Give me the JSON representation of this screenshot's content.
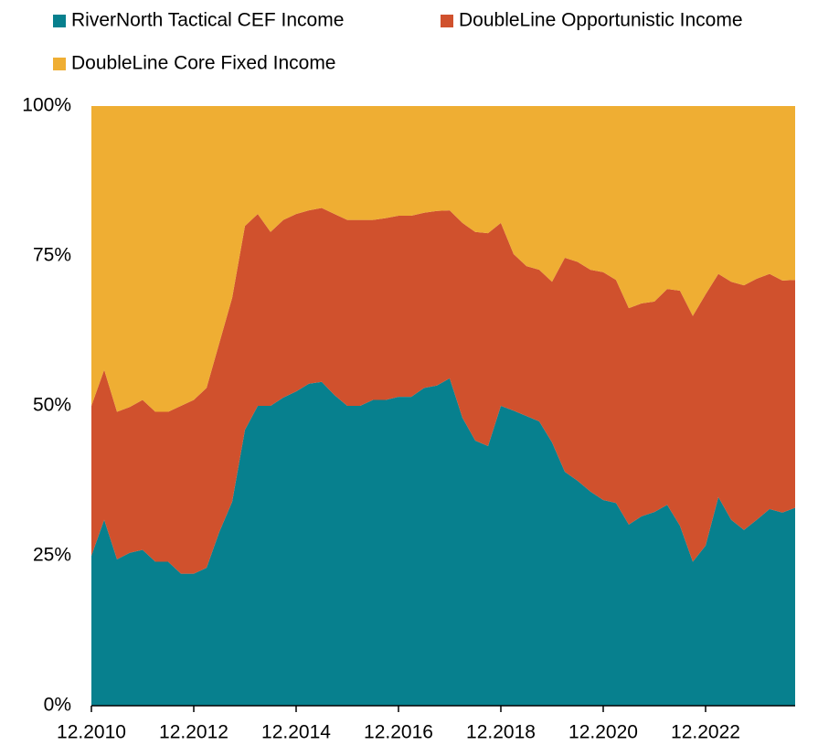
{
  "chart_data": {
    "type": "stacked_area",
    "categories": [
      "12.2010",
      null,
      null,
      null,
      null,
      null,
      null,
      null,
      "12.2012",
      null,
      null,
      null,
      null,
      null,
      null,
      null,
      "12.2014",
      null,
      null,
      null,
      null,
      null,
      null,
      null,
      "12.2016",
      null,
      null,
      null,
      null,
      null,
      null,
      null,
      "12.2018",
      null,
      null,
      null,
      null,
      null,
      null,
      null,
      "12.2020",
      null,
      null,
      null,
      null,
      null,
      null,
      null,
      "12.2022",
      null,
      null,
      null,
      null,
      null,
      null,
      null
    ],
    "series": [
      {
        "name": "RiverNorth Tactical CEF Income",
        "color": "#07808e",
        "values": [
          25,
          31,
          24.4,
          25.5,
          26,
          24,
          24,
          22,
          22,
          23,
          29,
          34,
          46,
          50,
          50,
          51.4,
          52.4,
          53.7,
          54,
          51.8,
          50,
          50,
          51,
          51,
          51.5,
          51.5,
          53,
          53.4,
          54.6,
          48,
          44.2,
          43.3,
          50,
          49.2,
          48.3,
          47.4,
          43.9,
          39,
          37.5,
          35.7,
          34.3,
          33.8,
          30.2,
          31.6,
          32.3,
          33.5,
          30,
          24,
          26.7,
          34.8,
          31,
          29.3,
          31,
          32.8,
          32.2,
          33
        ]
      },
      {
        "name": "DoubleLine Opportunistic Income",
        "color": "#d0512d",
        "values": [
          25,
          25,
          24.6,
          24.3,
          25,
          25,
          25,
          28,
          29,
          30,
          31.5,
          34,
          34,
          32,
          29,
          29.6,
          29.6,
          28.9,
          29,
          30.2,
          31,
          31,
          30,
          30.3,
          30.2,
          30.2,
          29.2,
          29.1,
          28,
          32.5,
          34.8,
          35.5,
          30.5,
          26.1,
          25,
          25.3,
          26.8,
          35.7,
          36.5,
          37,
          38,
          37.2,
          36.1,
          35.5,
          35.1,
          36,
          39.2,
          41,
          41.9,
          37.2,
          39.7,
          40.8,
          40.2,
          39.2,
          38.7,
          38
        ]
      },
      {
        "name": "DoubleLine Core Fixed Income",
        "color": "#efae33",
        "values": [
          50,
          44,
          51,
          50.2,
          49,
          51,
          51,
          50,
          49,
          47,
          39.5,
          32,
          20,
          18,
          21,
          19,
          18,
          17.4,
          17,
          18,
          19,
          19,
          19,
          18.7,
          18.3,
          18.3,
          17.8,
          17.5,
          17.4,
          19.5,
          21,
          21.2,
          19.5,
          24.7,
          26.7,
          27.3,
          29.3,
          25.3,
          26,
          27.3,
          27.7,
          29,
          33.7,
          32.9,
          32.6,
          30.5,
          30.8,
          35,
          31.4,
          28,
          29.3,
          29.9,
          28.8,
          28,
          29.1,
          29
        ]
      }
    ],
    "ylim": [
      0,
      100
    ],
    "yticks": [
      {
        "value": 0,
        "label": "0%"
      },
      {
        "value": 25,
        "label": "25%"
      },
      {
        "value": 50,
        "label": "50%"
      },
      {
        "value": 75,
        "label": "75%"
      },
      {
        "value": 100,
        "label": "100%"
      }
    ]
  }
}
